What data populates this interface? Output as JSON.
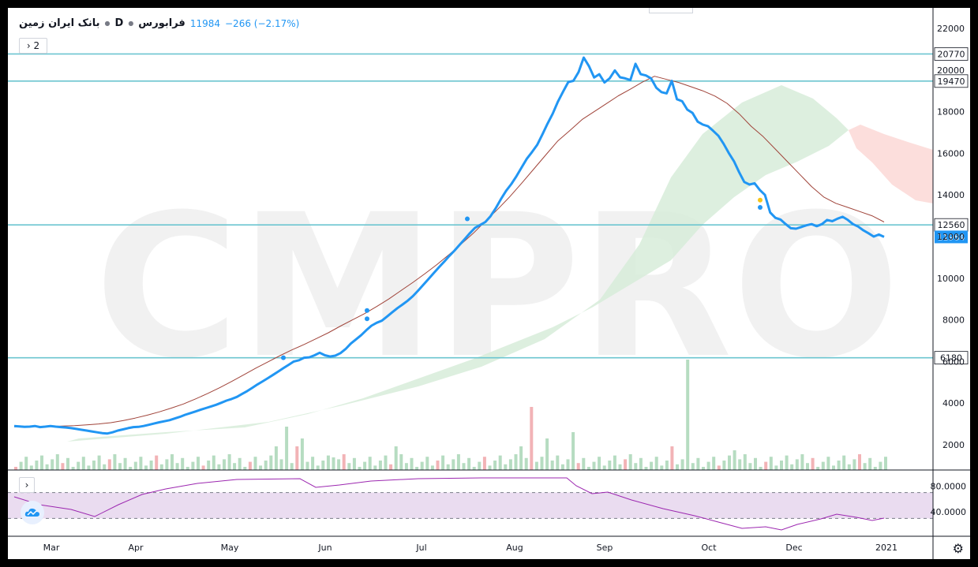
{
  "header": {
    "symbol": "بانک ایران زمین",
    "interval": "D",
    "exchange": "فرابورس",
    "last": "11984",
    "change": "−266 (−2.17%)",
    "indicator_count": "2",
    "expand_icon": "chevron-right-icon"
  },
  "watermark": "CMPRO",
  "colors": {
    "price": "#2196f3",
    "ma": "#a0443a",
    "hline": "#6cc5d0",
    "cloud_bull": "#d7ecd9",
    "cloud_bear": "#fbd8d6",
    "vol_up": "#b6dcc1",
    "vol_down": "#f2b3b6",
    "rsi": "#9c27b0",
    "rsi_band": "#eadcf0"
  },
  "chart_data": {
    "type": "line",
    "title": "",
    "scale": "linear",
    "ylim": [
      1000,
      22400
    ],
    "y_ticks": [
      "22000",
      "20000",
      "18000",
      "16000",
      "14000",
      "12000",
      "10000",
      "8000",
      "6000",
      "4000",
      "2000"
    ],
    "x_ticks": [
      "Mar",
      "Apr",
      "May",
      "Jun",
      "Jul",
      "Aug",
      "Sep",
      "Oct",
      "Dec",
      "2021"
    ],
    "horizontal_levels": [
      "20770",
      "19470",
      "12560",
      "6180"
    ],
    "last_price_label": "11984",
    "series": [
      {
        "values": [
          2900,
          2880,
          2860,
          2870,
          2900,
          2850,
          2870,
          2900,
          2870,
          2850,
          2830,
          2800,
          2760,
          2720,
          2680,
          2640,
          2600,
          2560,
          2540,
          2600,
          2680,
          2740,
          2800,
          2850,
          2860,
          2900,
          2960,
          3020,
          3080,
          3130,
          3180,
          3260,
          3340,
          3440,
          3520,
          3600,
          3680,
          3760,
          3840,
          3920,
          4020,
          4120,
          4200,
          4300,
          4440,
          4580,
          4740,
          4900,
          5050,
          5200,
          5360,
          5520,
          5680,
          5840,
          6000,
          6060,
          6180,
          6200,
          6300,
          6420,
          6300,
          6240,
          6280,
          6400,
          6600,
          6860,
          7060,
          7260,
          7500,
          7720,
          7860,
          7960,
          8160,
          8360,
          8560,
          8740,
          8920,
          9140,
          9400,
          9680,
          9960,
          10240,
          10520,
          10780,
          11060,
          11320,
          11600,
          11880,
          12160,
          12420,
          12560,
          12700,
          12980,
          13360,
          13800,
          14200,
          14520,
          14900,
          15320,
          15740,
          16060,
          16400,
          16900,
          17420,
          17900,
          18480,
          18960,
          19420,
          19480,
          19900,
          20600,
          20190,
          19640,
          19800,
          19400,
          19600,
          19980,
          19650,
          19600,
          19520,
          20300,
          19800,
          19740,
          19600,
          19150,
          18940,
          18880,
          19480,
          18600,
          18500,
          18100,
          17940,
          17520,
          17380,
          17300,
          17080,
          16840,
          16460,
          16020,
          15620,
          15100,
          14620,
          14500,
          14560,
          14240,
          14000,
          13160,
          12900,
          12820,
          12600,
          12400,
          12380,
          12460,
          12540,
          12600,
          12500,
          12600,
          12800,
          12740,
          12860,
          12950,
          12800,
          12600,
          12480,
          12300,
          12160,
          12000,
          12100,
          11984
        ]
      },
      {
        "values": [
          2860,
          2860,
          2870,
          2880,
          2900,
          2920,
          2960,
          3000,
          3060,
          3160,
          3280,
          3420,
          3580,
          3760,
          3960,
          4200,
          4460,
          4740,
          5040,
          5360,
          5680,
          5980,
          6280,
          6560,
          6820,
          7100,
          7380,
          7700,
          8000,
          8300,
          8640,
          9000,
          9400,
          9800,
          10220,
          10660,
          11140,
          11640,
          12160,
          12740,
          13300,
          13900,
          14560,
          15240,
          15920,
          16600,
          17100,
          17620,
          18000,
          18380,
          18760,
          19080,
          19420,
          19700,
          19550,
          19400,
          19200,
          19000,
          18750,
          18400,
          17900,
          17300,
          16800,
          16200,
          15600,
          15000,
          14400,
          13900,
          13600,
          13400,
          13200,
          13000,
          12700
        ]
      }
    ]
  },
  "rsi": {
    "y_ticks": [
      "80.0000",
      "40.0000"
    ],
    "band": [
      70,
      30
    ]
  },
  "toolbar": {
    "settings_icon": "gear-icon",
    "logo_icon": "cloud-logo-icon"
  }
}
